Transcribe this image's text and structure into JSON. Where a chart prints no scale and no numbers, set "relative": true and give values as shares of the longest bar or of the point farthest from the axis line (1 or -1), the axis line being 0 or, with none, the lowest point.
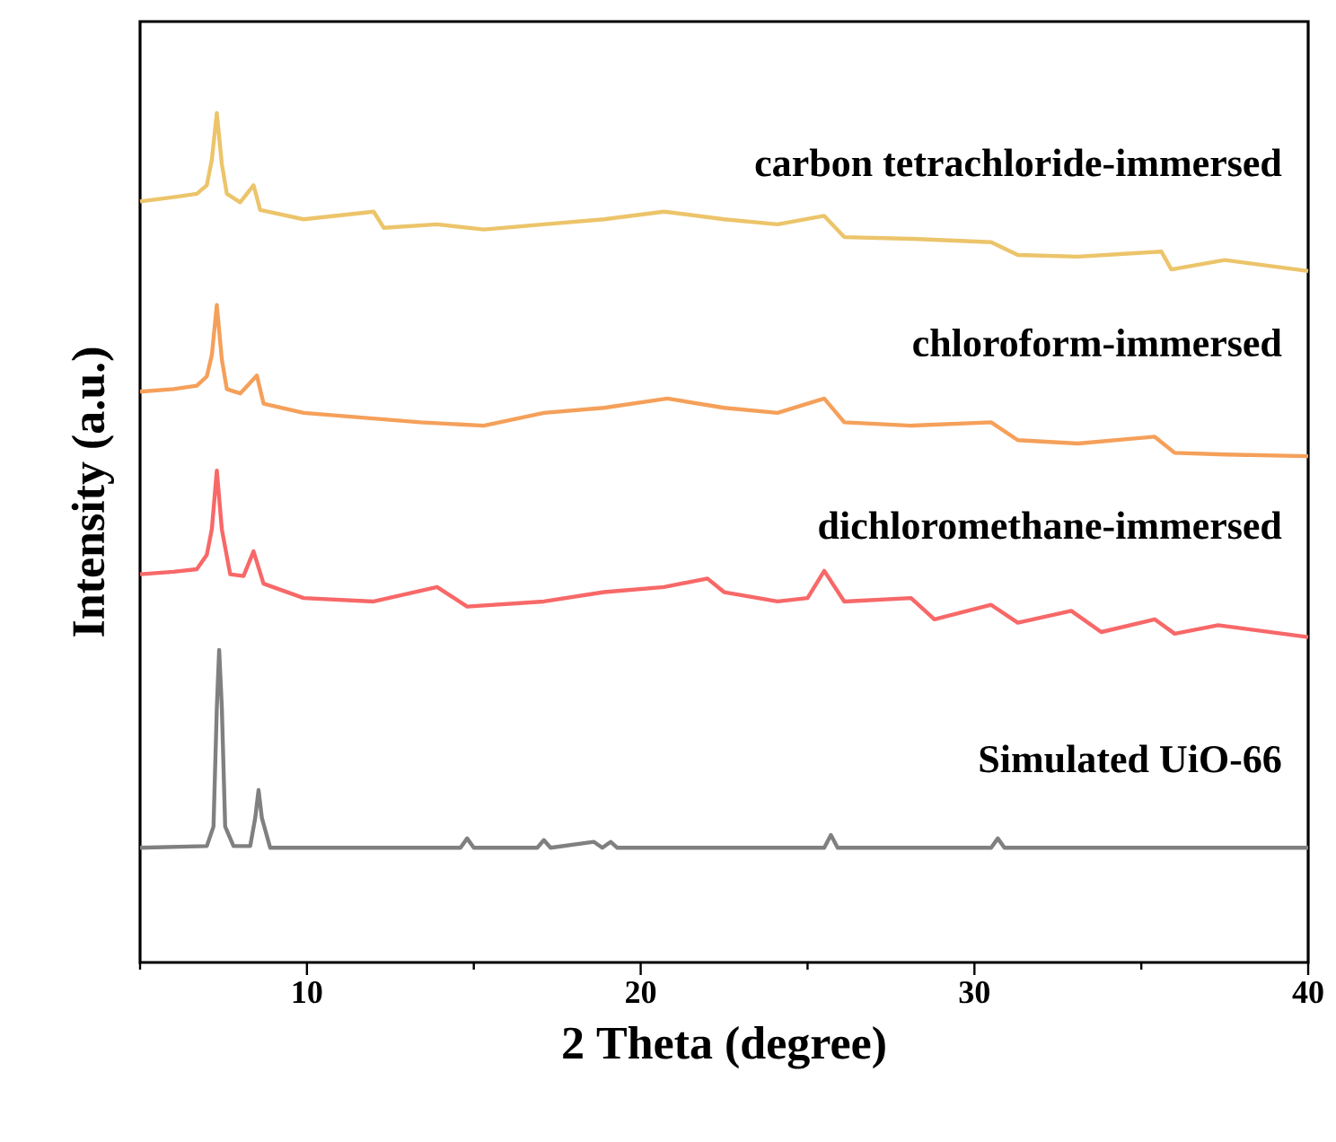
{
  "chart_data": {
    "type": "line",
    "relative": true,
    "xlabel": "2 Theta (degree)",
    "ylabel": "Intensity (a.u.)",
    "xlim": [
      5,
      40
    ],
    "xticks": [
      {
        "value": 5,
        "label": null
      },
      10,
      {
        "value": 15,
        "label": null
      },
      20,
      {
        "value": 25,
        "label": null
      },
      30,
      {
        "value": 35,
        "label": null
      },
      40
    ],
    "grid": false,
    "marker": "none",
    "line_style": "solid",
    "tick_labels": "x",
    "series": [
      {
        "name": "carbon tetrachloride-immersed",
        "color": "#ecc46a",
        "x": [
          5,
          6.0,
          6.7,
          7.0,
          7.15,
          7.3,
          7.45,
          7.6,
          8.0,
          8.4,
          8.6,
          9.9,
          12.0,
          12.3,
          13.9,
          15.3,
          17.1,
          18.9,
          20.7,
          22.5,
          24.1,
          25.5,
          26.1,
          28.1,
          30.5,
          31.3,
          33.1,
          35.6,
          35.9,
          37.5,
          40
        ],
        "values": [
          0.896,
          0.901,
          0.905,
          0.915,
          0.945,
          1.0,
          0.94,
          0.905,
          0.895,
          0.915,
          0.886,
          0.875,
          0.884,
          0.865,
          0.869,
          0.863,
          0.869,
          0.875,
          0.884,
          0.875,
          0.869,
          0.879,
          0.854,
          0.852,
          0.848,
          0.833,
          0.831,
          0.837,
          0.816,
          0.827,
          0.814
        ]
      },
      {
        "name": "chloroform-immersed",
        "color": "#f5a05a",
        "x": [
          5,
          6.0,
          6.7,
          7.0,
          7.15,
          7.3,
          7.45,
          7.6,
          8.0,
          8.5,
          8.7,
          9.9,
          13.4,
          15.3,
          17.1,
          18.9,
          20.8,
          22.5,
          24.1,
          25.5,
          26.1,
          28.1,
          30.5,
          31.3,
          33.1,
          35.4,
          36,
          37.5,
          40
        ],
        "values": [
          0.672,
          0.675,
          0.679,
          0.69,
          0.715,
          0.774,
          0.71,
          0.675,
          0.67,
          0.691,
          0.658,
          0.647,
          0.636,
          0.632,
          0.647,
          0.653,
          0.664,
          0.653,
          0.647,
          0.664,
          0.636,
          0.632,
          0.636,
          0.615,
          0.611,
          0.619,
          0.6,
          0.598,
          0.596
        ]
      },
      {
        "name": "dichloromethane-immersed",
        "color": "#f86868",
        "x": [
          5,
          6.0,
          6.7,
          7.0,
          7.15,
          7.3,
          7.45,
          7.7,
          8.1,
          8.4,
          8.7,
          9.9,
          12.0,
          13.9,
          14.8,
          17.1,
          18.9,
          20.7,
          22.0,
          22.5,
          24.1,
          25.0,
          25.5,
          26.1,
          28.1,
          28.8,
          30.5,
          31.3,
          32.9,
          33.8,
          35.4,
          36,
          37.3,
          40
        ],
        "values": [
          0.457,
          0.46,
          0.463,
          0.48,
          0.51,
          0.579,
          0.51,
          0.457,
          0.455,
          0.484,
          0.446,
          0.429,
          0.425,
          0.442,
          0.419,
          0.425,
          0.436,
          0.442,
          0.452,
          0.436,
          0.425,
          0.429,
          0.461,
          0.425,
          0.429,
          0.404,
          0.421,
          0.4,
          0.414,
          0.389,
          0.404,
          0.387,
          0.397,
          0.383
        ]
      },
      {
        "name": "Simulated UiO-66",
        "color": "#808080",
        "x": [
          5,
          7.0,
          7.2,
          7.3,
          7.37,
          7.45,
          7.55,
          7.8,
          8.3,
          8.45,
          8.55,
          8.65,
          8.9,
          14.6,
          14.8,
          15.0,
          16.9,
          17.1,
          17.3,
          18.6,
          18.85,
          19.1,
          19.3,
          25.5,
          25.7,
          25.9,
          30.5,
          30.7,
          30.9,
          40
        ],
        "values": [
          0.135,
          0.137,
          0.16,
          0.3,
          0.368,
          0.3,
          0.16,
          0.137,
          0.137,
          0.17,
          0.203,
          0.17,
          0.135,
          0.135,
          0.146,
          0.135,
          0.135,
          0.144,
          0.135,
          0.142,
          0.135,
          0.142,
          0.135,
          0.135,
          0.15,
          0.135,
          0.135,
          0.146,
          0.135,
          0.135
        ]
      }
    ]
  }
}
